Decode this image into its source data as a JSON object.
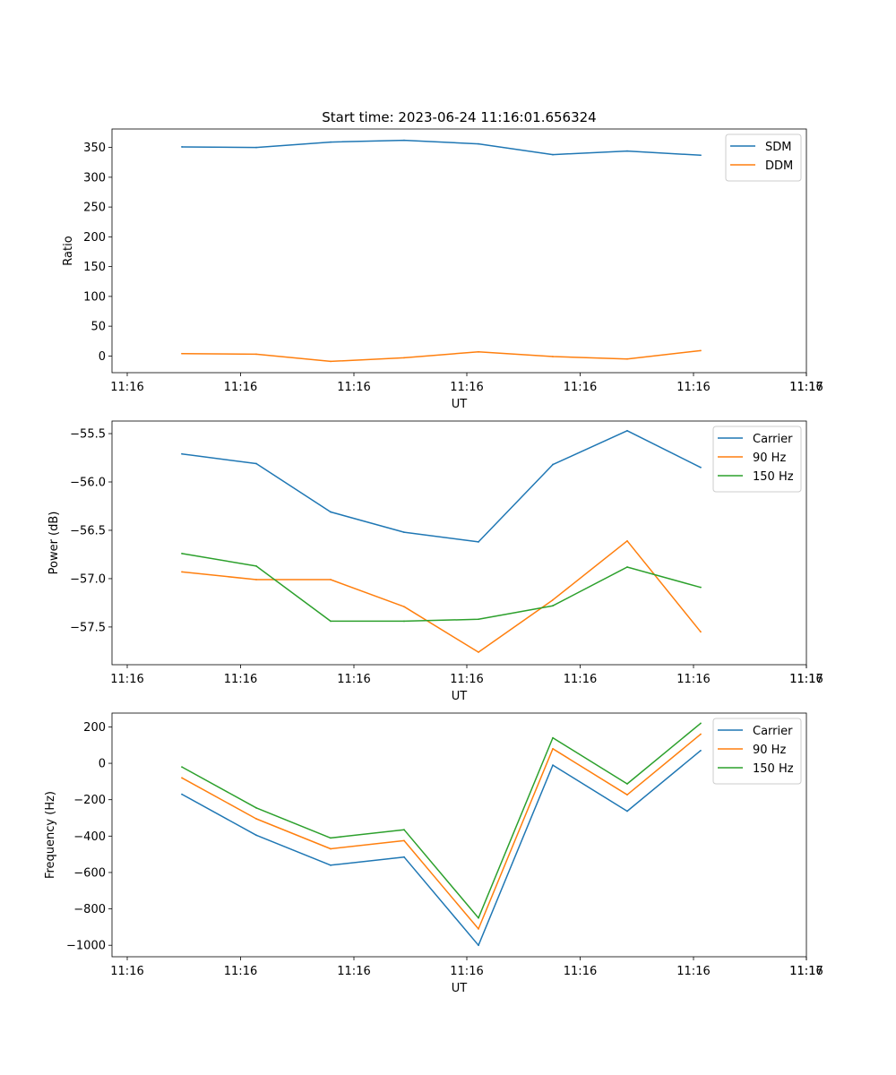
{
  "figure_title": "Start time: 2023-06-24 11:16:01.656324",
  "chart_data": [
    {
      "type": "line",
      "xlabel": "UT",
      "ylabel": "Ratio",
      "xticks": [
        "11:16",
        "11:16",
        "11:16",
        "11:16",
        "11:16",
        "11:16",
        "11:16",
        "11:17"
      ],
      "yticks": [
        0,
        50,
        100,
        150,
        200,
        250,
        300,
        350
      ],
      "ytick_labels": [
        "0",
        "50",
        "100",
        "150",
        "200",
        "250",
        "300",
        "350"
      ],
      "ylim": [
        -28,
        381
      ],
      "legend_position": "upper right",
      "series": [
        {
          "name": "SDM",
          "color": "#1f77b4",
          "values": [
            351,
            350,
            359,
            362,
            356,
            338,
            344,
            337
          ]
        },
        {
          "name": "DDM",
          "color": "#ff7f0e",
          "values": [
            4,
            3,
            -9,
            -3,
            7,
            -1,
            -5,
            9
          ]
        }
      ]
    },
    {
      "type": "line",
      "xlabel": "UT",
      "ylabel": "Power (dB)",
      "xticks": [
        "11:16",
        "11:16",
        "11:16",
        "11:16",
        "11:16",
        "11:16",
        "11:16",
        "11:17"
      ],
      "yticks": [
        -57.5,
        -57.0,
        -56.5,
        -56.0,
        -55.5
      ],
      "ytick_labels": [
        "−57.5",
        "−57.0",
        "−56.5",
        "−56.0",
        "−55.5"
      ],
      "ylim": [
        -57.89,
        -55.37
      ],
      "legend_position": "upper right",
      "series": [
        {
          "name": "Carrier",
          "color": "#1f77b4",
          "values": [
            -55.71,
            -55.81,
            -56.31,
            -56.52,
            -56.62,
            -55.82,
            -55.47,
            -55.85
          ]
        },
        {
          "name": "90 Hz",
          "color": "#ff7f0e",
          "values": [
            -56.93,
            -57.01,
            -57.01,
            -57.29,
            -57.76,
            -57.22,
            -56.61,
            -57.55
          ]
        },
        {
          "name": "150 Hz",
          "color": "#2ca02c",
          "values": [
            -56.74,
            -56.87,
            -57.44,
            -57.44,
            -57.42,
            -57.28,
            -56.88,
            -57.09
          ]
        }
      ]
    },
    {
      "type": "line",
      "xlabel": "UT",
      "ylabel": "Frequency (Hz)",
      "xticks": [
        "11:16",
        "11:16",
        "11:16",
        "11:16",
        "11:16",
        "11:16",
        "11:16",
        "11:17"
      ],
      "yticks": [
        -1000,
        -800,
        -600,
        -400,
        -200,
        0,
        200
      ],
      "ytick_labels": [
        "−1000",
        "−800",
        "−600",
        "−400",
        "−200",
        "0",
        "200"
      ],
      "ylim": [
        -1063,
        276
      ],
      "legend_position": "upper right",
      "series": [
        {
          "name": "Carrier",
          "color": "#1f77b4",
          "values": [
            -170,
            -395,
            -560,
            -515,
            -1000,
            -10,
            -263,
            70
          ]
        },
        {
          "name": "90 Hz",
          "color": "#ff7f0e",
          "values": [
            -80,
            -305,
            -470,
            -425,
            -910,
            80,
            -173,
            160
          ]
        },
        {
          "name": "150 Hz",
          "color": "#2ca02c",
          "values": [
            -20,
            -245,
            -410,
            -365,
            -850,
            140,
            -113,
            220
          ]
        }
      ]
    }
  ]
}
